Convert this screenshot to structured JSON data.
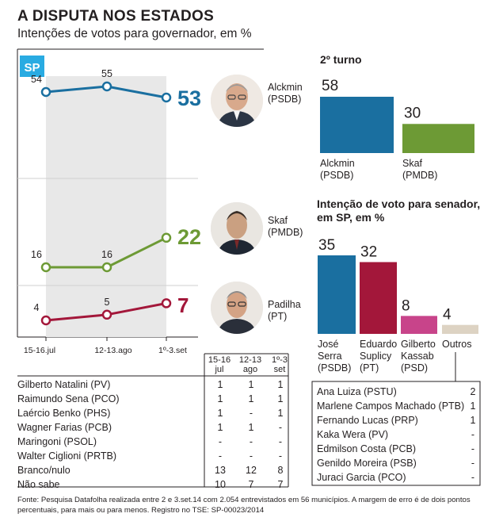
{
  "header": {
    "title": "A DISPUTA NOS ESTADOS",
    "subtitle": "Intenções de votos para governador, em %"
  },
  "state_badge": "SP",
  "colors": {
    "alckmin": "#1a6fa0",
    "skaf": "#6d9a35",
    "padilha": "#a3173a",
    "kassab": "#c8448a",
    "outros": "#ddd3c3",
    "shade": "#e8e8e8",
    "badge": "#29abe2"
  },
  "chart_data": [
    {
      "type": "line",
      "title": "Intenções de votos para governador, em %",
      "categories": [
        "15-16.jul",
        "12-13.ago",
        "1º-3.set"
      ],
      "series": [
        {
          "name": "Alckmin",
          "party": "(PSDB)",
          "values": [
            54,
            55,
            53
          ]
        },
        {
          "name": "Skaf",
          "party": "(PMDB)",
          "values": [
            16,
            16,
            22
          ]
        },
        {
          "name": "Padilha",
          "party": "(PT)",
          "values": [
            4,
            5,
            7
          ]
        }
      ]
    },
    {
      "type": "bar",
      "title": "2º turno",
      "categories": [
        "Alckmin (PSDB)",
        "Skaf (PMDB)"
      ],
      "series": [
        {
          "name": "Alckmin",
          "party": "(PSDB)",
          "value": 58
        },
        {
          "name": "Skaf",
          "party": "(PMDB)",
          "value": 30
        }
      ],
      "ylim": [
        0,
        58
      ]
    },
    {
      "type": "bar",
      "title_lines": [
        "Intenção de voto para senador,",
        "em SP, em %"
      ],
      "categories": [
        "José Serra (PSDB)",
        "Eduardo Suplicy (PT)",
        "Gilberto Kassab (PSD)",
        "Outros"
      ],
      "series": [
        {
          "name_lines": [
            "José",
            "Serra",
            "(PSDB)"
          ],
          "value": 35
        },
        {
          "name_lines": [
            "Eduardo",
            "Suplicy",
            "(PT)"
          ],
          "value": 32
        },
        {
          "name_lines": [
            "Gilberto",
            "Kassab",
            "(PSD)"
          ],
          "value": 8
        },
        {
          "name_lines": [
            "Outros"
          ],
          "value": 4
        }
      ],
      "ylim": [
        0,
        35
      ]
    },
    {
      "type": "table",
      "columns": [
        [
          "15-16",
          "jul"
        ],
        [
          "12-13",
          "ago"
        ],
        [
          "1º-3",
          "set"
        ]
      ],
      "rows": [
        {
          "label": "Gilberto Natalini (PV)",
          "values": [
            "1",
            "1",
            "1"
          ]
        },
        {
          "label": "Raimundo Sena (PCO)",
          "values": [
            "1",
            "1",
            "1"
          ]
        },
        {
          "label": "Laércio Benko (PHS)",
          "values": [
            "1",
            "-",
            "1"
          ]
        },
        {
          "label": "Wagner Farias (PCB)",
          "values": [
            "1",
            "1",
            "-"
          ]
        },
        {
          "label": "Maringoni (PSOL)",
          "values": [
            "-",
            "-",
            "-"
          ]
        },
        {
          "label": "Walter Ciglioni (PRTB)",
          "values": [
            "-",
            "-",
            "-"
          ]
        },
        {
          "label": "Branco/nulo",
          "values": [
            "13",
            "12",
            "8"
          ]
        },
        {
          "label": "Não sabe",
          "values": [
            "10",
            "7",
            "7"
          ]
        }
      ]
    },
    {
      "type": "table",
      "rows": [
        {
          "label": "Ana Luiza (PSTU)",
          "value": "2"
        },
        {
          "label": "Marlene Campos Machado (PTB)",
          "value": "1"
        },
        {
          "label": "Fernando Lucas (PRP)",
          "value": "1"
        },
        {
          "label": "Kaka Wera (PV)",
          "value": "-"
        },
        {
          "label": "Edmilson Costa (PCB)",
          "value": "-"
        },
        {
          "label": "Genildo Moreira (PSB)",
          "value": "-"
        },
        {
          "label": "Juraci Garcia (PCO)",
          "value": "-"
        }
      ]
    }
  ],
  "footnote": "Fonte: Pesquisa Datafolha realizada entre 2 e 3.set.14 com 2.054 entrevistados em 56 municípios. A margem de erro é de dois pontos percentuais, para mais ou para menos. Registro no TSE: SP-00023/2014"
}
